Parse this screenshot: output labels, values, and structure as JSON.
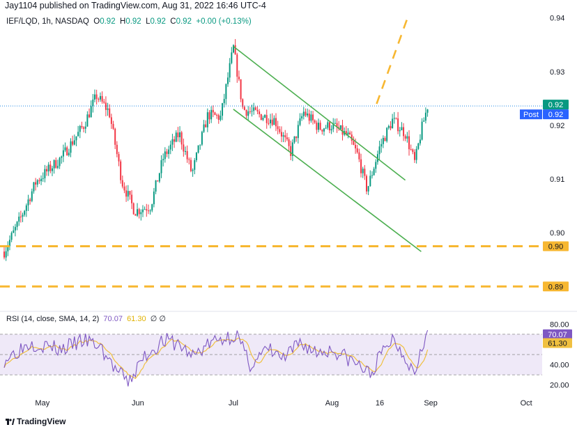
{
  "header": {
    "published": "Jay1104 published on TradingView.com, Aug 31, 2022 16:46 UTC-4"
  },
  "symbol_line": {
    "name": "IEF/LQD, 1h, NASDAQ",
    "o_label": "O",
    "o": "0.92",
    "h_label": "H",
    "h": "0.92",
    "l_label": "L",
    "l": "0.92",
    "c_label": "C",
    "c": "0.92",
    "change": "+0.00 (+0.13%)"
  },
  "rsi_line": {
    "label": "RSI (14, close, SMA, 14, 2)",
    "rsi": "70.07",
    "sma": "61.30",
    "extra": "∅ ∅"
  },
  "brand": {
    "name": "TradingView"
  },
  "colors": {
    "up": "#089981",
    "down": "#f23645",
    "trend": "#4caf50",
    "level": "#f7b731",
    "dotted": "#1e88e5",
    "rsi": "#7e57c2",
    "rsi_ma": "#f0c040",
    "band": "#efe9f8"
  },
  "chart_data": {
    "type": "candlestick",
    "symbol": "IEF/LQD",
    "interval": "1h",
    "x_ticks": [
      "May",
      "Jun",
      "Jul",
      "Aug",
      "16",
      "Sep",
      "Oct"
    ],
    "y_ticks": [
      "0.94",
      "0.93",
      "0.92",
      "0.91",
      "0.90"
    ],
    "ylim": [
      0.8855,
      0.941
    ],
    "price_tags": [
      {
        "label": "",
        "value": "0.92",
        "kind": "last"
      },
      {
        "label": "Post",
        "value": "0.92",
        "kind": "post"
      },
      {
        "label": "",
        "value": "0.90",
        "kind": "level"
      },
      {
        "label": "",
        "value": "0.89",
        "kind": "level"
      }
    ],
    "horizontal_levels": [
      0.8975,
      0.89
    ],
    "last_price_level": 0.9236,
    "trendlines": [
      {
        "color": "green",
        "from": [
          "Jul 1",
          0.9347
        ],
        "to": [
          "Aug 24",
          0.9098
        ]
      },
      {
        "color": "green",
        "from": [
          "Jul 1",
          0.923
        ],
        "to": [
          "Aug 29",
          0.8965
        ]
      },
      {
        "color": "yellow-dashed",
        "from": [
          "Aug 15",
          0.924
        ],
        "to": [
          "Aug 25",
          0.9405
        ]
      }
    ],
    "series_trajectory": [
      [
        "Apr 20",
        0.8965
      ],
      [
        "Apr 25",
        0.9025
      ],
      [
        "Apr 30",
        0.9095
      ],
      [
        "May 8",
        0.914
      ],
      [
        "May 15",
        0.92
      ],
      [
        "May 19",
        0.9255
      ],
      [
        "May 23",
        0.9225
      ],
      [
        "May 27",
        0.9095
      ],
      [
        "May 31",
        0.904
      ],
      [
        "Jun 5",
        0.905
      ],
      [
        "Jun 9",
        0.914
      ],
      [
        "Jun 14",
        0.9185
      ],
      [
        "Jun 18",
        0.911
      ],
      [
        "Jun 23",
        0.922
      ],
      [
        "Jun 27",
        0.9215
      ],
      [
        "Jul 1",
        0.9345
      ],
      [
        "Jul 4",
        0.923
      ],
      [
        "Jul 9",
        0.922
      ],
      [
        "Jul 14",
        0.921
      ],
      [
        "Jul 19",
        0.915
      ],
      [
        "Jul 23",
        0.9225
      ],
      [
        "Jul 28",
        0.9195
      ],
      [
        "Aug 1",
        0.92
      ],
      [
        "Aug 6",
        0.918
      ],
      [
        "Aug 9",
        0.9145
      ],
      [
        "Aug 12",
        0.908
      ],
      [
        "Aug 16",
        0.916
      ],
      [
        "Aug 20",
        0.921
      ],
      [
        "Aug 24",
        0.9185
      ],
      [
        "Aug 27",
        0.913
      ],
      [
        "Aug 29",
        0.919
      ],
      [
        "Aug 31",
        0.9236
      ]
    ],
    "rsi": {
      "y_ticks": [
        "80.00",
        "40.00",
        "20.00"
      ],
      "tags": [
        "70.07",
        "61.30"
      ],
      "bands": [
        70,
        50,
        30
      ],
      "ylim": [
        15,
        85
      ],
      "trajectory": [
        [
          "Apr 20",
          45
        ],
        [
          "Apr 28",
          62
        ],
        [
          "May 8",
          55
        ],
        [
          "May 15",
          64
        ],
        [
          "May 20",
          58
        ],
        [
          "May 25",
          35
        ],
        [
          "May 29",
          22
        ],
        [
          "Jun 3",
          48
        ],
        [
          "Jun 9",
          64
        ],
        [
          "Jun 14",
          60
        ],
        [
          "Jun 18",
          48
        ],
        [
          "Jun 23",
          60
        ],
        [
          "Jun 28",
          66
        ],
        [
          "Jul 2",
          70
        ],
        [
          "Jul 6",
          40
        ],
        [
          "Jul 12",
          55
        ],
        [
          "Jul 17",
          45
        ],
        [
          "Jul 22",
          62
        ],
        [
          "Jul 27",
          52
        ],
        [
          "Aug 1",
          55
        ],
        [
          "Aug 6",
          46
        ],
        [
          "Aug 10",
          38
        ],
        [
          "Aug 13",
          30
        ],
        [
          "Aug 16",
          48
        ],
        [
          "Aug 20",
          66
        ],
        [
          "Aug 24",
          48
        ],
        [
          "Aug 27",
          32
        ],
        [
          "Aug 29",
          60
        ],
        [
          "Aug 31",
          70
        ]
      ]
    }
  }
}
